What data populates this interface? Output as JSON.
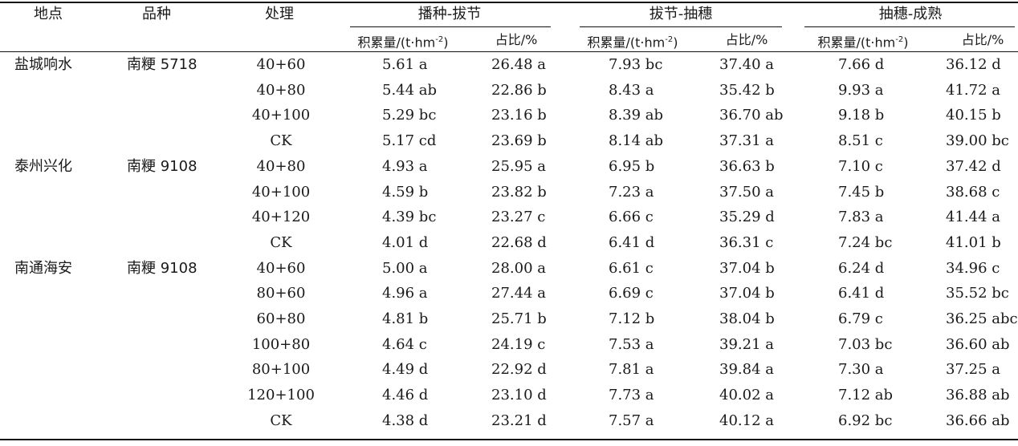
{
  "headers": {
    "site": "地点",
    "variety": "品种",
    "treatment": "处理",
    "groups": [
      "播种-拔节",
      "拔节-抽穗",
      "抽穗-成熟"
    ],
    "accum_prefix": "积累量/(t·hm",
    "accum_exp": "-2",
    "accum_suffix": ")",
    "ratio": "占比/%"
  },
  "rows": [
    {
      "site": "盐城响水",
      "variety": "南粳 5718",
      "treatment": "40+60",
      "vals": [
        "5.61 a",
        "26.48 a",
        "7.93 bc",
        "37.40 a",
        "7.66 d",
        "36.12 d"
      ]
    },
    {
      "site": "",
      "variety": "",
      "treatment": "40+80",
      "vals": [
        "5.44 ab",
        "22.86 b",
        "8.43 a",
        "35.42 b",
        "9.93 a",
        "41.72 a"
      ]
    },
    {
      "site": "",
      "variety": "",
      "treatment": "40+100",
      "vals": [
        "5.29 bc",
        "23.16 b",
        "8.39 ab",
        "36.70 ab",
        "9.18 b",
        "40.15 b"
      ]
    },
    {
      "site": "",
      "variety": "",
      "treatment": "CK",
      "vals": [
        "5.17 cd",
        "23.69 b",
        "8.14 ab",
        "37.31 a",
        "8.51 c",
        "39.00 bc"
      ]
    },
    {
      "site": "泰州兴化",
      "variety": "南粳 9108",
      "treatment": "40+80",
      "vals": [
        "4.93 a",
        "25.95 a",
        "6.95 b",
        "36.63 b",
        "7.10 c",
        "37.42 d"
      ]
    },
    {
      "site": "",
      "variety": "",
      "treatment": "40+100",
      "vals": [
        "4.59 b",
        "23.82 b",
        "7.23 a",
        "37.50 a",
        "7.45 b",
        "38.68 c"
      ]
    },
    {
      "site": "",
      "variety": "",
      "treatment": "40+120",
      "vals": [
        "4.39 bc",
        "23.27 c",
        "6.66 c",
        "35.29 d",
        "7.83 a",
        "41.44 a"
      ]
    },
    {
      "site": "",
      "variety": "",
      "treatment": "CK",
      "vals": [
        "4.01 d",
        "22.68 d",
        "6.41 d",
        "36.31 c",
        "7.24 bc",
        "41.01 b"
      ]
    },
    {
      "site": "南通海安",
      "variety": "南粳 9108",
      "treatment": "40+60",
      "vals": [
        "5.00 a",
        "28.00 a",
        "6.61 c",
        "37.04 b",
        "6.24 d",
        "34.96 c"
      ]
    },
    {
      "site": "",
      "variety": "",
      "treatment": "80+60",
      "vals": [
        "4.96 a",
        "27.44 a",
        "6.69 c",
        "37.04 b",
        "6.41 d",
        "35.52 bc"
      ]
    },
    {
      "site": "",
      "variety": "",
      "treatment": "60+80",
      "vals": [
        "4.81 b",
        "25.71 b",
        "7.12 b",
        "38.04 b",
        "6.79 c",
        "36.25 abc"
      ]
    },
    {
      "site": "",
      "variety": "",
      "treatment": "100+80",
      "vals": [
        "4.64 c",
        "24.19 c",
        "7.53 a",
        "39.21 a",
        "7.03 bc",
        "36.60 ab"
      ]
    },
    {
      "site": "",
      "variety": "",
      "treatment": "80+100",
      "vals": [
        "4.49 d",
        "22.92 d",
        "7.81 a",
        "39.84 a",
        "7.30 a",
        "37.25 a"
      ]
    },
    {
      "site": "",
      "variety": "",
      "treatment": "120+100",
      "vals": [
        "4.46 d",
        "23.10 d",
        "7.73 a",
        "40.02 a",
        "7.12 ab",
        "36.88 ab"
      ]
    },
    {
      "site": "",
      "variety": "",
      "treatment": "CK",
      "vals": [
        "4.38 d",
        "23.21 d",
        "7.57 a",
        "40.12 a",
        "6.92 bc",
        "36.66 ab"
      ]
    }
  ]
}
